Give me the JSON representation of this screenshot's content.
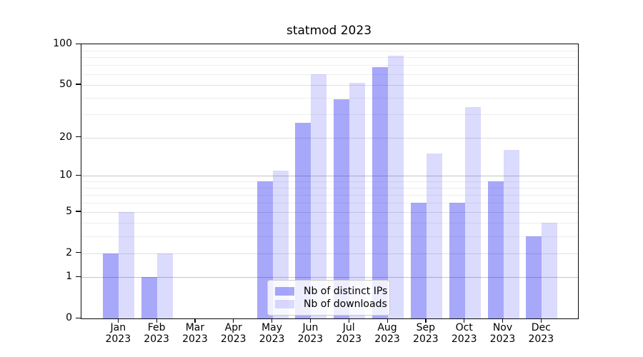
{
  "chart_data": {
    "type": "bar",
    "title": "statmod 2023",
    "categories": [
      "Jan",
      "Feb",
      "Mar",
      "Apr",
      "May",
      "Jun",
      "Jul",
      "Aug",
      "Sep",
      "Oct",
      "Nov",
      "Dec"
    ],
    "x_sublabel": "2023",
    "series": [
      {
        "name": "Nb of distinct IPs",
        "color": "rgba(25,25,242,0.38)",
        "values": [
          2,
          1,
          0,
          0,
          9,
          26,
          39,
          68,
          6,
          6,
          9,
          3
        ]
      },
      {
        "name": "Nb of downloads",
        "color": "rgba(25,25,242,0.155)",
        "values": [
          5,
          2,
          0,
          0,
          11,
          60,
          52,
          82,
          15,
          34,
          16,
          4
        ]
      }
    ],
    "y_axis": {
      "scale": "log1p",
      "max": 100,
      "tick_values": [
        100,
        50,
        20,
        10,
        5,
        2,
        1,
        0
      ],
      "tick_labels": [
        "100",
        "50",
        "20",
        "10",
        "5",
        "2",
        "1",
        "0"
      ],
      "decade_gridlines": [
        1,
        10,
        100
      ],
      "mid_gridlines": [
        2,
        5,
        20,
        50
      ],
      "minor_gridlines": [
        3,
        4,
        6,
        7,
        8,
        9,
        30,
        40,
        60,
        70,
        80,
        90
      ]
    },
    "legend": {
      "position": "lower-center"
    },
    "grid": "on",
    "colors": {
      "decade_grid": "#c4c4c4",
      "mid_grid": "#dfdfdf",
      "minor_grid": "#eeeeee",
      "axis": "#0a0a0a"
    }
  }
}
